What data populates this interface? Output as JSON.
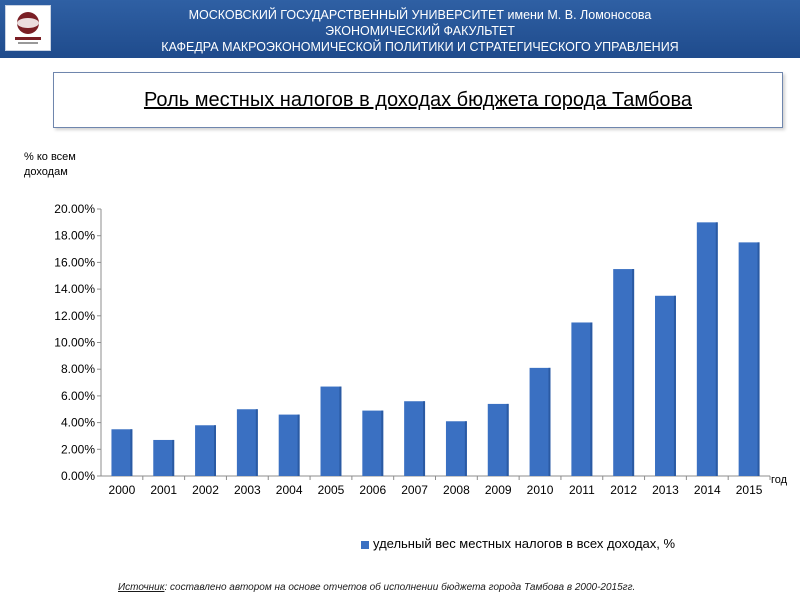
{
  "header": {
    "line1": "МОСКОВСКИЙ ГОСУДАРСТВЕННЫЙ УНИВЕРСИТЕТ имени  М. В. Ломоносова",
    "line2": "ЭКОНОМИЧЕСКИЙ ФАКУЛЬТЕТ",
    "line3": "КАФЕДРА МАКРОЭКОНОМИЧЕСКОЙ ПОЛИТИКИ И СТРАТЕГИЧЕСКОГО УПРАВЛЕНИЯ"
  },
  "logo_icon": "university-emblem",
  "slide_title": "Роль местных налогов в доходах бюджета города Тамбова",
  "chart_data": {
    "type": "bar",
    "categories": [
      "2000",
      "2001",
      "2002",
      "2003",
      "2004",
      "2005",
      "2006",
      "2007",
      "2008",
      "2009",
      "2010",
      "2011",
      "2012",
      "2013",
      "2014",
      "2015"
    ],
    "series": [
      {
        "name": "удельный вес местных налогов в всех доходах, %",
        "values": [
          3.5,
          2.7,
          3.8,
          5.0,
          4.6,
          6.7,
          4.9,
          5.6,
          4.1,
          5.4,
          8.1,
          11.5,
          15.5,
          13.5,
          19.0,
          17.5
        ]
      }
    ],
    "ylabel_line1": "% ко всем",
    "ylabel_line2": "доходам",
    "xlabel": "год",
    "ylim": [
      0,
      20
    ],
    "yticks": [
      "0.00%",
      "2.00%",
      "4.00%",
      "6.00%",
      "8.00%",
      "10.00%",
      "12.00%",
      "14.00%",
      "16.00%",
      "18.00%",
      "20.00%"
    ],
    "grid": false,
    "legend_position": "bottom",
    "bar_color": "#3a70c2"
  },
  "source": {
    "label": "Источник",
    "text": ": составлено автором на основе отчетов об исполнении бюджета города Тамбова в 2000-2015гг."
  }
}
